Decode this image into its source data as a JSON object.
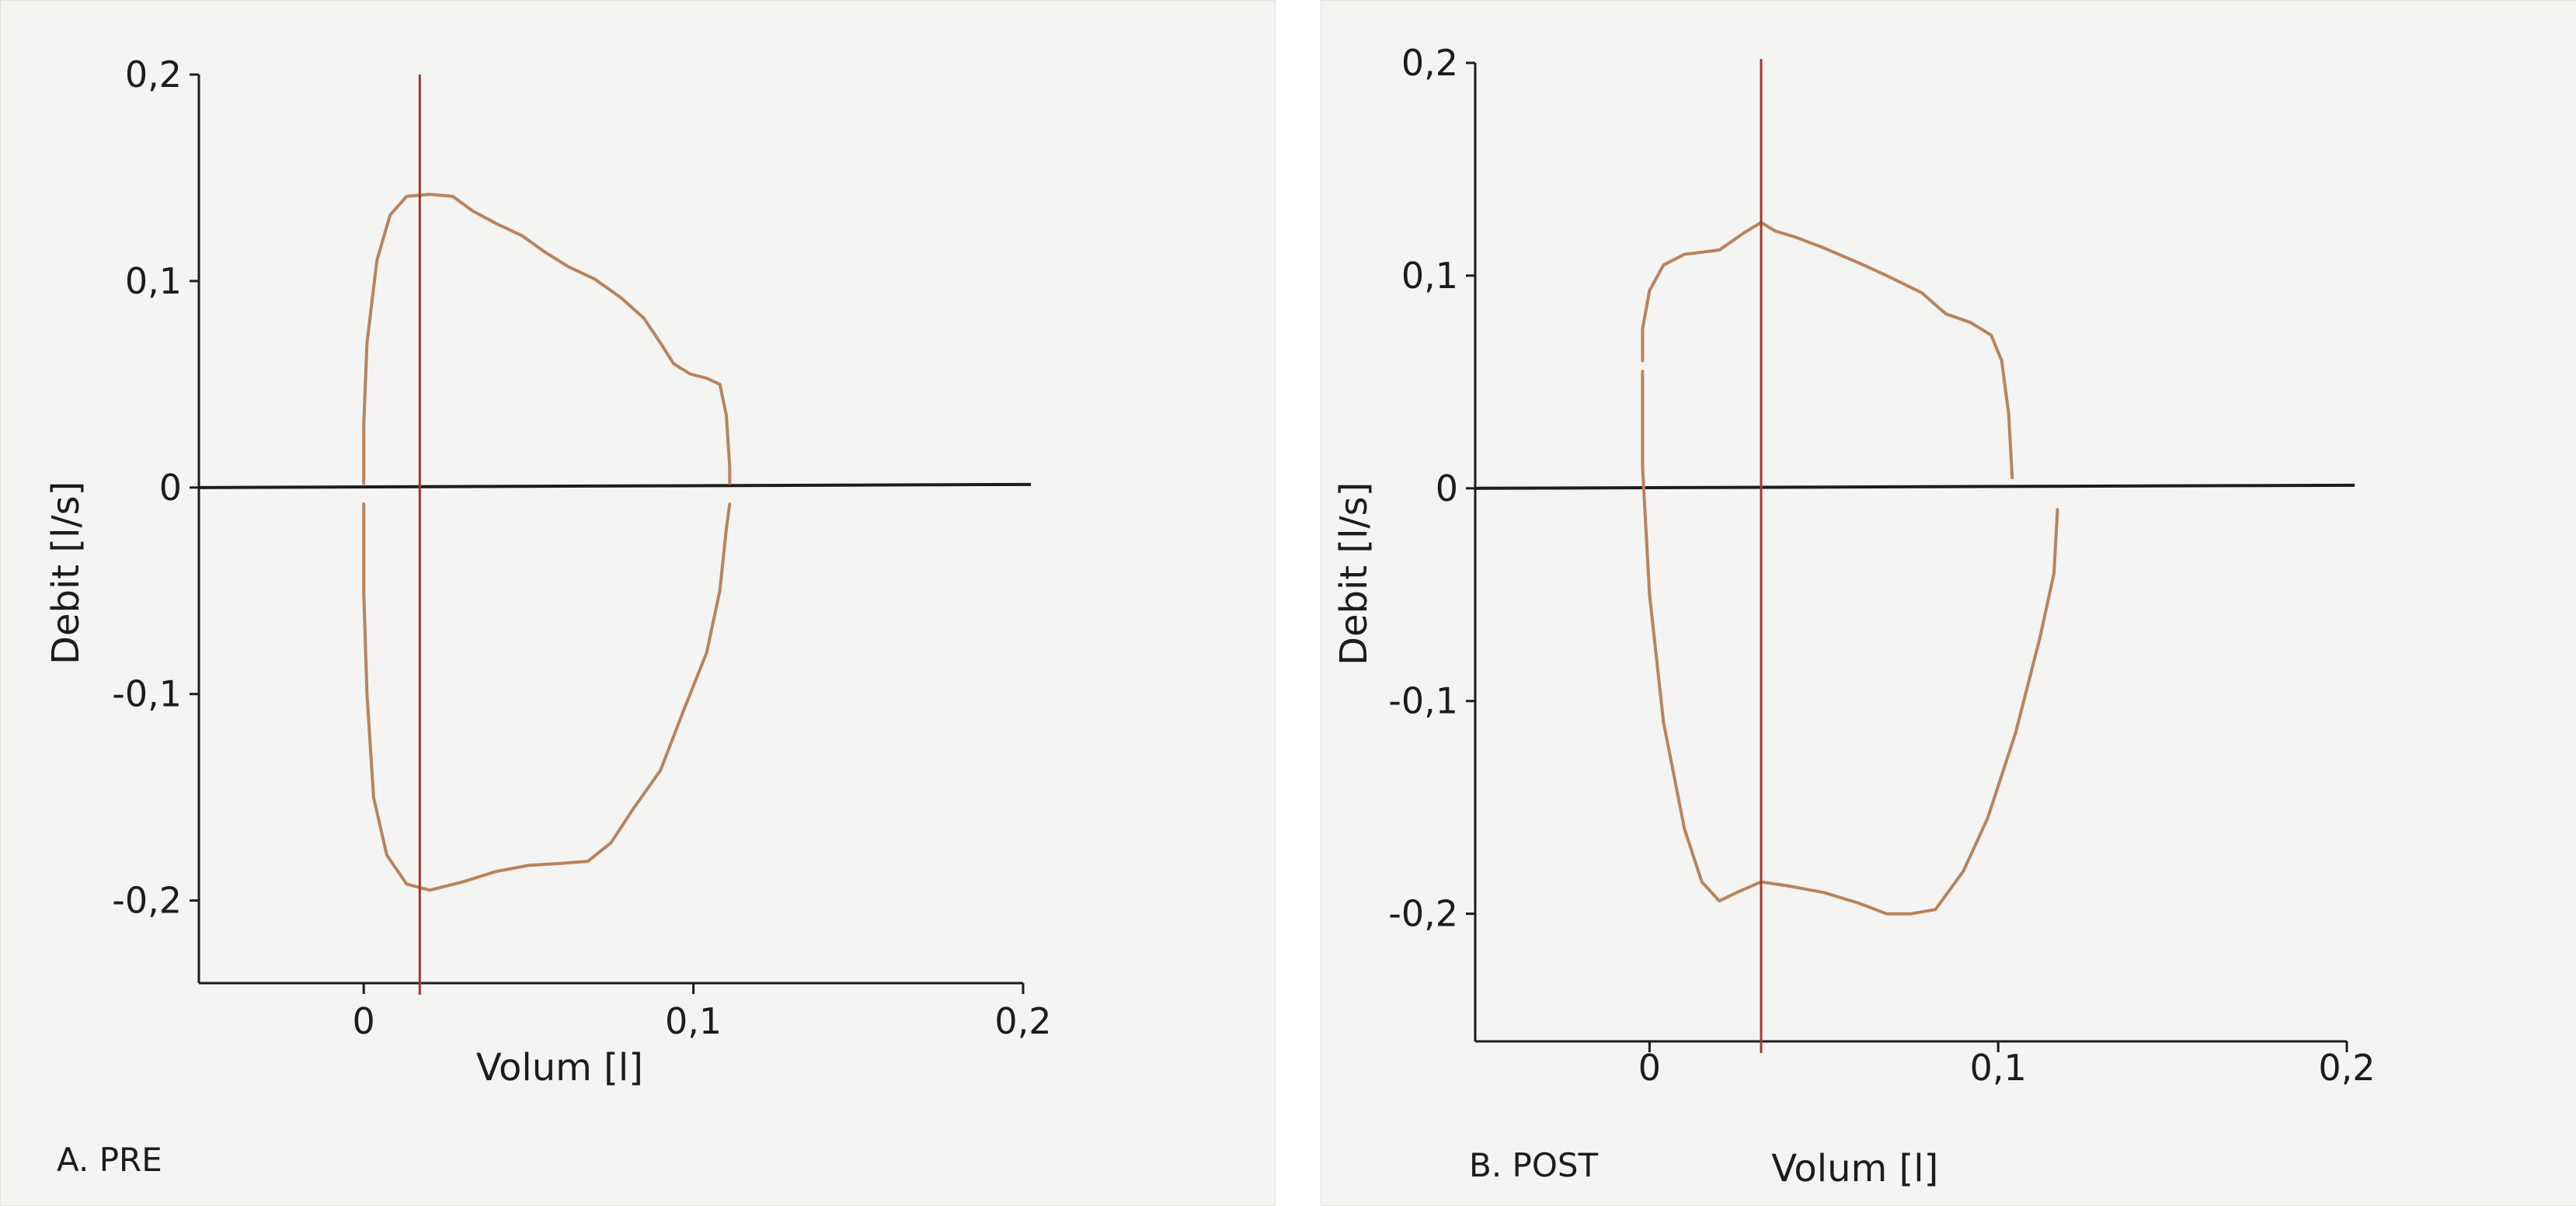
{
  "chart_data": [
    {
      "type": "line",
      "panel_label": "A. PRE",
      "xlabel": "Volum [l]",
      "ylabel": "Debit [l/s]",
      "xlim": [
        -0.05,
        0.2
      ],
      "ylim": [
        -0.24,
        0.2
      ],
      "x_ticks": [
        {
          "v": 0,
          "label": "0"
        },
        {
          "v": 0.1,
          "label": "0,1"
        },
        {
          "v": 0.2,
          "label": "0,2"
        }
      ],
      "y_ticks": [
        {
          "v": -0.2,
          "label": "-0,2"
        },
        {
          "v": -0.1,
          "label": "-0,1"
        },
        {
          "v": 0,
          "label": "0"
        },
        {
          "v": 0.1,
          "label": "0,1"
        },
        {
          "v": 0.2,
          "label": "0,2"
        }
      ],
      "vertical_marker_x": 0.017,
      "series": [
        {
          "color": "#b8835c",
          "segments": [
            [
              [
                0,
                0.002
              ],
              [
                0,
                0.03
              ],
              [
                0.001,
                0.07
              ],
              [
                0.004,
                0.11
              ],
              [
                0.008,
                0.132
              ],
              [
                0.013,
                0.141
              ],
              [
                0.02,
                0.142
              ],
              [
                0.027,
                0.141
              ],
              [
                0.033,
                0.134
              ],
              [
                0.04,
                0.128
              ],
              [
                0.048,
                0.122
              ],
              [
                0.055,
                0.114
              ],
              [
                0.062,
                0.107
              ],
              [
                0.07,
                0.101
              ],
              [
                0.078,
                0.092
              ],
              [
                0.085,
                0.082
              ],
              [
                0.09,
                0.07
              ],
              [
                0.094,
                0.06
              ],
              [
                0.099,
                0.055
              ],
              [
                0.104,
                0.053
              ],
              [
                0.108,
                0.05
              ],
              [
                0.11,
                0.035
              ],
              [
                0.111,
                0.01
              ],
              [
                0.111,
                0.002
              ]
            ],
            [
              [
                0,
                -0.008
              ],
              [
                0,
                -0.05
              ],
              [
                0.001,
                -0.1
              ],
              [
                0.003,
                -0.15
              ],
              [
                0.007,
                -0.178
              ],
              [
                0.013,
                -0.192
              ],
              [
                0.02,
                -0.195
              ],
              [
                0.03,
                -0.191
              ],
              [
                0.04,
                -0.186
              ],
              [
                0.05,
                -0.183
              ],
              [
                0.06,
                -0.182
              ],
              [
                0.068,
                -0.181
              ],
              [
                0.075,
                -0.172
              ],
              [
                0.082,
                -0.155
              ],
              [
                0.09,
                -0.137
              ],
              [
                0.097,
                -0.108
              ],
              [
                0.104,
                -0.08
              ],
              [
                0.108,
                -0.05
              ],
              [
                0.11,
                -0.02
              ],
              [
                0.111,
                -0.008
              ]
            ]
          ]
        }
      ]
    },
    {
      "type": "line",
      "panel_label": "B. POST",
      "xlabel": "Volum [l]",
      "ylabel": "Debit [l/s]",
      "xlim": [
        -0.05,
        0.2
      ],
      "ylim": [
        -0.26,
        0.2
      ],
      "x_ticks": [
        {
          "v": 0,
          "label": "0"
        },
        {
          "v": 0.1,
          "label": "0,1"
        },
        {
          "v": 0.2,
          "label": "0,2"
        }
      ],
      "y_ticks": [
        {
          "v": -0.2,
          "label": "-0,2"
        },
        {
          "v": -0.1,
          "label": "-0,1"
        },
        {
          "v": 0,
          "label": "0"
        },
        {
          "v": 0.1,
          "label": "0,1"
        },
        {
          "v": 0.2,
          "label": "0,2"
        }
      ],
      "vertical_marker_x": 0.032,
      "series": [
        {
          "color": "#b8835c",
          "segments": [
            [
              [
                -0.002,
                0.06
              ],
              [
                -0.002,
                0.075
              ],
              [
                0,
                0.093
              ],
              [
                0.004,
                0.105
              ],
              [
                0.01,
                0.11
              ],
              [
                0.02,
                0.112
              ],
              [
                0.027,
                0.12
              ],
              [
                0.032,
                0.125
              ],
              [
                0.036,
                0.121
              ],
              [
                0.042,
                0.118
              ],
              [
                0.05,
                0.113
              ],
              [
                0.06,
                0.106
              ],
              [
                0.068,
                0.1
              ],
              [
                0.078,
                0.092
              ],
              [
                0.085,
                0.082
              ],
              [
                0.092,
                0.078
              ],
              [
                0.098,
                0.072
              ],
              [
                0.101,
                0.06
              ],
              [
                0.103,
                0.035
              ],
              [
                0.104,
                0.005
              ]
            ],
            [
              [
                -0.002,
                0.055
              ],
              [
                -0.002,
                0.01
              ],
              [
                0,
                -0.05
              ],
              [
                0.004,
                -0.11
              ],
              [
                0.01,
                -0.16
              ],
              [
                0.015,
                -0.185
              ],
              [
                0.02,
                -0.194
              ],
              [
                0.025,
                -0.19
              ],
              [
                0.032,
                -0.185
              ],
              [
                0.04,
                -0.187
              ],
              [
                0.05,
                -0.19
              ],
              [
                0.06,
                -0.195
              ],
              [
                0.068,
                -0.2
              ],
              [
                0.075,
                -0.2
              ],
              [
                0.082,
                -0.198
              ],
              [
                0.09,
                -0.18
              ],
              [
                0.097,
                -0.155
              ],
              [
                0.105,
                -0.115
              ],
              [
                0.112,
                -0.07
              ],
              [
                0.116,
                -0.04
              ],
              [
                0.117,
                -0.01
              ]
            ]
          ]
        }
      ]
    }
  ]
}
